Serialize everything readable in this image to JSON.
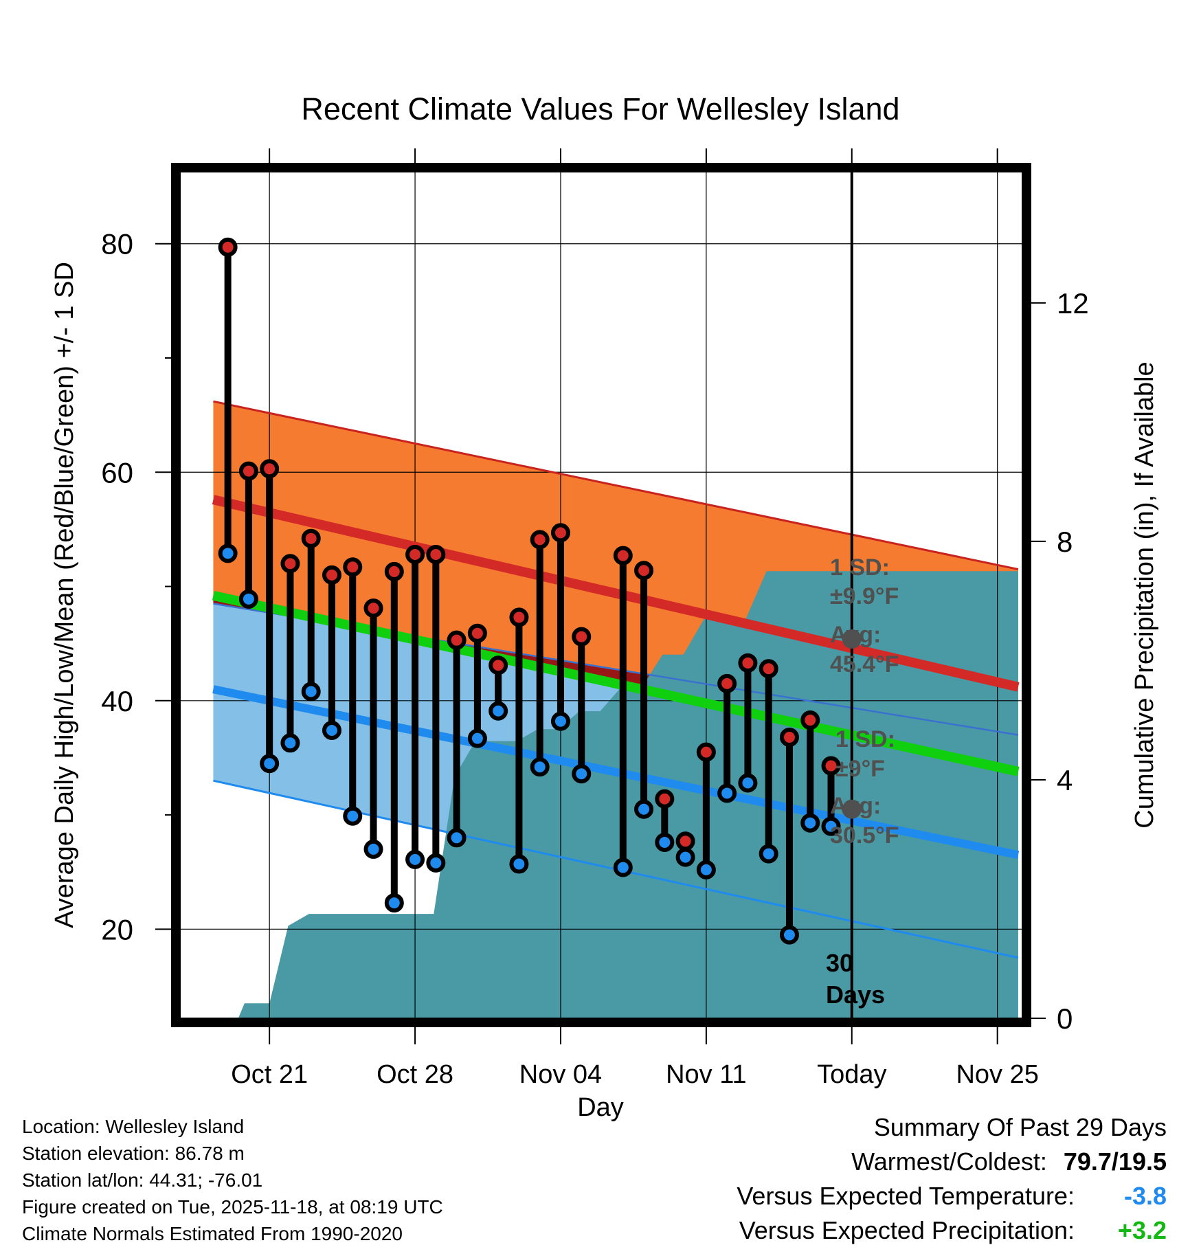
{
  "chart_data": {
    "type": "line",
    "title": "Recent Climate Values For Wellesley Island",
    "xlabel": "Day",
    "ylabel": "Average Daily High/Low/Mean (Red/Blue/Green) +/- 1 SD",
    "y2label": "Cumulative Precipitation (in), If Available",
    "xlim": [
      -4.3,
      36.2
    ],
    "ylim": [
      12.2,
      86.3
    ],
    "y2lim": [
      0,
      14.2
    ],
    "x_ticks": [
      {
        "x": 0,
        "label": "Oct 21"
      },
      {
        "x": 7,
        "label": "Oct 28"
      },
      {
        "x": 14,
        "label": "Nov 04"
      },
      {
        "x": 21,
        "label": "Nov 11"
      },
      {
        "x": 28,
        "label": "Today"
      },
      {
        "x": 35,
        "label": "Nov 25"
      }
    ],
    "y_ticks": [
      20,
      40,
      60,
      80
    ],
    "y_minor_ticks": [
      30,
      50,
      70
    ],
    "y2_ticks": [
      0,
      4,
      8,
      12
    ],
    "today_x": 28,
    "today_label_1": "30",
    "today_label_2": "Days",
    "normals": {
      "x": [
        -2.7,
        36.0
      ],
      "high_avg": [
        57.6,
        41.2
      ],
      "high_sd_upper": [
        66.2,
        51.5
      ],
      "low_avg": [
        41.0,
        26.5
      ],
      "low_sd_lower": [
        33.0,
        17.5
      ],
      "mean": [
        49.2,
        33.8
      ],
      "mean_sd_upper": [
        48.5,
        37.0
      ],
      "colors": {
        "high_band": "#f47b2f",
        "high_line": "#d42a27",
        "low_band": "#83bfe6",
        "low_line": "#1f8bef",
        "mean_line": "#0fcf0f",
        "mean_band": "#981616",
        "precip": "#4a9aa5"
      }
    },
    "series": [
      {
        "name": "High",
        "color": "#d42a27",
        "x": [
          -2,
          -1,
          0,
          1,
          2,
          3,
          4,
          5,
          6,
          7,
          8,
          9,
          10,
          11,
          12,
          13,
          14,
          15,
          17,
          18,
          19,
          20,
          21,
          22,
          23,
          24,
          25,
          26,
          27
        ],
        "values": [
          79.7,
          60.1,
          60.3,
          52.0,
          54.2,
          51.0,
          51.7,
          48.1,
          51.3,
          52.8,
          52.8,
          45.3,
          45.9,
          43.1,
          47.3,
          54.1,
          54.7,
          45.6,
          52.7,
          51.4,
          31.4,
          27.7,
          35.5,
          41.5,
          43.3,
          42.8,
          36.8,
          38.3,
          34.3
        ]
      },
      {
        "name": "Low",
        "color": "#1f8bef",
        "x": [
          -2,
          -1,
          0,
          1,
          2,
          3,
          4,
          5,
          6,
          7,
          8,
          9,
          10,
          11,
          12,
          13,
          14,
          15,
          17,
          18,
          19,
          20,
          21,
          22,
          23,
          24,
          25,
          26,
          27
        ],
        "values": [
          52.9,
          48.9,
          34.5,
          36.3,
          40.8,
          37.4,
          29.9,
          27.0,
          22.3,
          26.1,
          25.8,
          28.0,
          36.7,
          39.1,
          25.7,
          34.2,
          38.2,
          33.6,
          25.4,
          30.5,
          27.6,
          26.3,
          25.2,
          31.9,
          32.8,
          26.6,
          19.5,
          29.3,
          29.0
        ]
      },
      {
        "name": "Cumulative Precipitation",
        "axis": "right",
        "x": [
          -1.5,
          -1.2,
          0.0,
          0.9,
          1.9,
          2.9,
          3.9,
          4.9,
          5.9,
          6.9,
          7.9,
          8.9,
          9.9,
          10.9,
          11.9,
          12.9,
          13.9,
          14.9,
          15.9,
          16.9,
          17.9,
          18.9,
          19.9,
          20.9,
          21.9,
          22.9,
          23.9,
          24.9,
          25.9,
          26.9,
          27.9,
          28.9,
          29.9,
          30.9,
          31.9,
          32.9,
          33.9,
          34.9,
          36.0
        ],
        "values": [
          0.0,
          0.25,
          0.25,
          1.55,
          1.75,
          1.75,
          1.75,
          1.75,
          1.75,
          1.75,
          1.75,
          4.05,
          4.65,
          4.65,
          4.65,
          4.85,
          4.85,
          5.15,
          5.15,
          5.55,
          5.55,
          6.1,
          6.1,
          6.7,
          6.7,
          6.7,
          7.5,
          7.5,
          7.5,
          7.5,
          7.5,
          7.5,
          7.5,
          7.5,
          7.5,
          7.5,
          7.5,
          7.5,
          7.5
        ]
      }
    ],
    "annotations": {
      "high_sd_1": "1 SD:",
      "high_sd_2": "±9.9°F",
      "high_avg_1": "Avg:",
      "high_avg_2": "45.4°F",
      "low_sd_1": "1 SD:",
      "low_sd_2": "±9°F",
      "low_avg_1": "Avg:",
      "low_avg_2": "30.5°F",
      "high_avg_marker": 45.4,
      "low_avg_marker": 30.5
    }
  },
  "info": {
    "location": "Location: Wellesley Island",
    "elevation": "Station elevation: 86.78 m",
    "latlon": "Station lat/lon: 44.31; -76.01",
    "created": "Figure created on Tue, 2025-11-18, at 08:19 UTC",
    "normals": "Climate Normals Estimated From 1990-2020"
  },
  "summary": {
    "title": "Summary Of Past 29 Days",
    "warm_label": "Warmest/Coldest:",
    "warm_value": "79.7/19.5",
    "temp_label": "Versus Expected Temperature:",
    "temp_value": "-3.8",
    "temp_color": "#1f8bef",
    "precip_label": "Versus Expected Precipitation:",
    "precip_value": "+3.2",
    "precip_color": "#14b814"
  }
}
